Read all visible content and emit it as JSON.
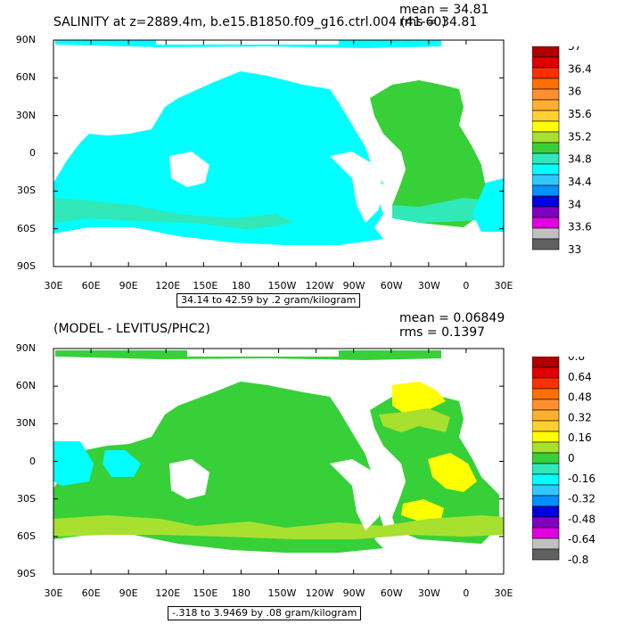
{
  "colors": {
    "cb_top": [
      "#b00000",
      "#e00000",
      "#ff3000",
      "#ff7000",
      "#ff9030",
      "#ffb030",
      "#ffd030",
      "#ffff00",
      "#a8e030",
      "#38d038",
      "#30e8b8",
      "#00ffff",
      "#30c8ff",
      "#0090ff",
      "#0000e0",
      "#8000c0",
      "#e000e0",
      "#c0c0c0",
      "#606060"
    ],
    "cb_bottom": [
      "#b00000",
      "#e00000",
      "#ff3000",
      "#ff7000",
      "#ff9030",
      "#ffb030",
      "#ffd030",
      "#ffff00",
      "#a8e030",
      "#38d038",
      "#30e8b8",
      "#00ffff",
      "#30c8ff",
      "#0090ff",
      "#0000e0",
      "#8000c0",
      "#e000e0",
      "#c0c0c0",
      "#606060"
    ],
    "ocean_top": "#00ffff",
    "atlantic_top": "#38d038",
    "band_top": "#30e8b8",
    "ocean_bottom": "#38d038",
    "yellow": "#ffff00",
    "lime": "#a8e030",
    "cyan": "#00ffff"
  },
  "icons": [
    "colorbar-legend"
  ],
  "chart_data": [
    {
      "type": "heatmap",
      "title": "SALINITY at z=2889.4m, b.e15.B1850.f09_g16.ctrl.004 (41-60)",
      "stats": {
        "mean": "mean = 34.81",
        "rms": "rms = 34.81"
      },
      "x_ticks": [
        "30E",
        "60E",
        "90E",
        "120E",
        "150E",
        "180",
        "150W",
        "120W",
        "90W",
        "60W",
        "30W",
        "0",
        "30E"
      ],
      "y_ticks": [
        "90N",
        "60N",
        "30N",
        "0",
        "30S",
        "60S",
        "90S"
      ],
      "xlim": [
        30,
        390
      ],
      "ylim": [
        -90,
        90
      ],
      "range_label": "34.14 to 42.59 by .2 gram/kilogram",
      "colorbar_labels": [
        "37",
        "36.4",
        "36",
        "35.6",
        "35.2",
        "34.8",
        "34.4",
        "34",
        "33.6",
        "33"
      ],
      "mean_value": 34.81,
      "rms_value": 34.81,
      "units": "gram/kilogram"
    },
    {
      "type": "heatmap",
      "title": "(MODEL - LEVITUS/PHC2)",
      "stats": {
        "mean": "mean = 0.06849",
        "rms": "rms = 0.1397"
      },
      "x_ticks": [
        "30E",
        "60E",
        "90E",
        "120E",
        "150E",
        "180",
        "150W",
        "120W",
        "90W",
        "60W",
        "30W",
        "0",
        "30E"
      ],
      "y_ticks": [
        "90N",
        "60N",
        "30N",
        "0",
        "30S",
        "60S",
        "90S"
      ],
      "xlim": [
        30,
        390
      ],
      "ylim": [
        -90,
        90
      ],
      "range_label": "-.318 to 3.9469 by .08 gram/kilogram",
      "colorbar_labels": [
        "0.8",
        "0.64",
        "0.48",
        "0.32",
        "0.16",
        "0",
        "-0.16",
        "-0.32",
        "-0.48",
        "-0.64",
        "-0.8"
      ],
      "mean_value": 0.06849,
      "rms_value": 0.1397,
      "units": "gram/kilogram"
    }
  ]
}
